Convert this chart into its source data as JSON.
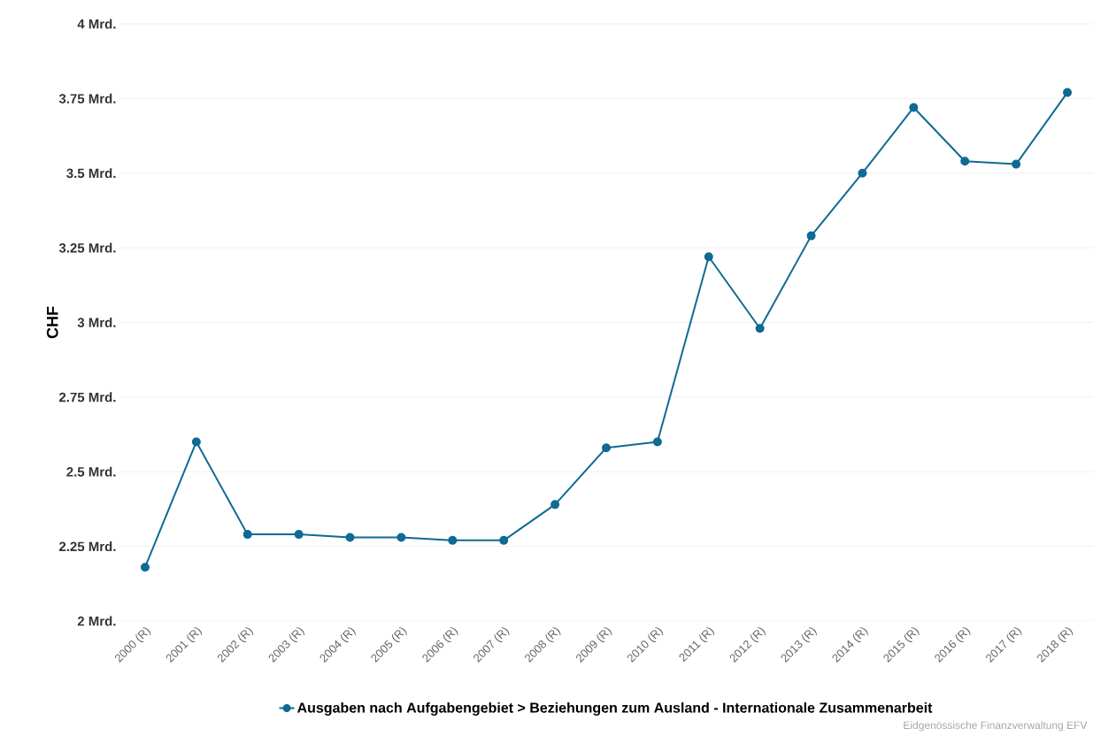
{
  "chart_data": {
    "type": "line",
    "ylabel": "CHF",
    "categories": [
      "2000 (R)",
      "2001 (R)",
      "2002 (R)",
      "2003 (R)",
      "2004 (R)",
      "2005 (R)",
      "2006 (R)",
      "2007 (R)",
      "2008 (R)",
      "2009 (R)",
      "2010 (R)",
      "2011 (R)",
      "2012 (R)",
      "2013 (R)",
      "2014 (R)",
      "2015 (R)",
      "2016 (R)",
      "2017 (R)",
      "2018 (R)"
    ],
    "series": [
      {
        "name": "Ausgaben nach Aufgabengebiet > Beziehungen zum Ausland - Internationale Zusammenarbeit",
        "color": "#0f6a94",
        "values": [
          2.18,
          2.6,
          2.29,
          2.29,
          2.28,
          2.28,
          2.27,
          2.27,
          2.39,
          2.58,
          2.6,
          3.22,
          2.98,
          3.29,
          3.5,
          3.72,
          3.54,
          3.53,
          3.77
        ]
      }
    ],
    "ylim": [
      2,
      4
    ],
    "yticks": [
      {
        "value": 2,
        "label": "2 Mrd."
      },
      {
        "value": 2.25,
        "label": "2.25 Mrd."
      },
      {
        "value": 2.5,
        "label": "2.5 Mrd."
      },
      {
        "value": 2.75,
        "label": "2.75 Mrd."
      },
      {
        "value": 3,
        "label": "3 Mrd."
      },
      {
        "value": 3.25,
        "label": "3.25 Mrd."
      },
      {
        "value": 3.5,
        "label": "3.5 Mrd."
      },
      {
        "value": 3.75,
        "label": "3.75 Mrd."
      },
      {
        "value": 4,
        "label": "4 Mrd."
      }
    ],
    "grid": "y",
    "legend": "bottom",
    "marker": "circle",
    "line_style": "solid",
    "annotations": [
      "Eidgenössische Finanzverwaltung EFV"
    ]
  }
}
